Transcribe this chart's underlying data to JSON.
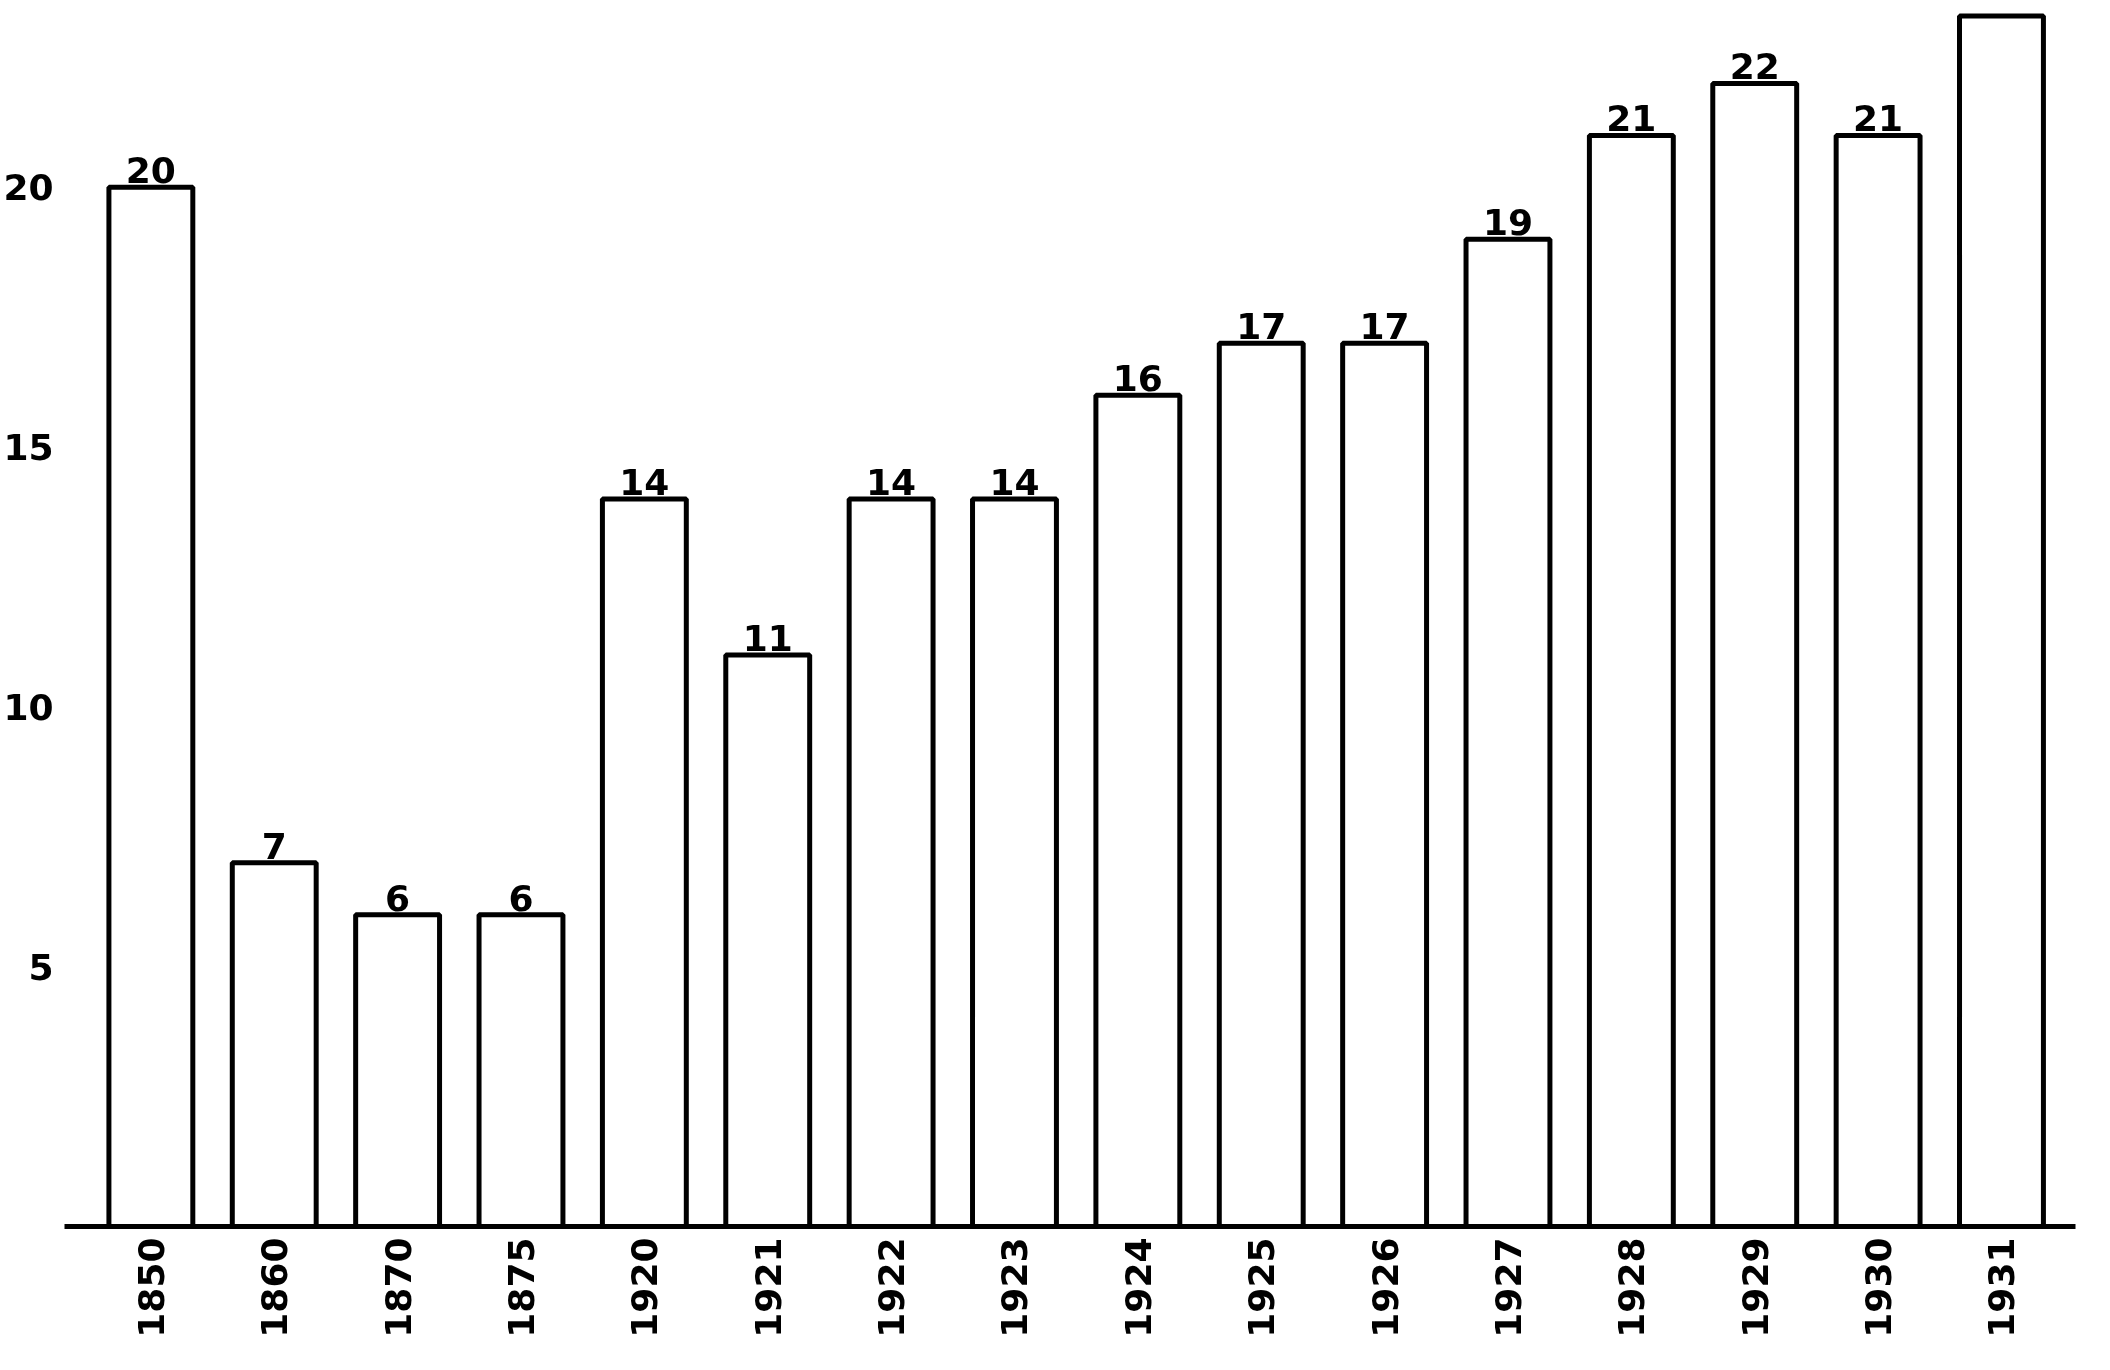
{
  "chart_data": {
    "type": "bar",
    "categories": [
      "1850",
      "1860",
      "1870",
      "1875",
      "1920",
      "1921",
      "1922",
      "1923",
      "1924",
      "1925",
      "1926",
      "1927",
      "1928",
      "1929",
      "1930",
      "1931"
    ],
    "values": [
      20,
      7,
      6,
      6,
      14,
      11,
      14,
      14,
      16,
      17,
      17,
      19,
      21,
      22,
      21,
      23.3
    ],
    "value_labels": [
      "20",
      "7",
      "6",
      "6",
      "14",
      "11",
      "14",
      "14",
      "16",
      "17",
      "17",
      "19",
      "21",
      "22",
      "21",
      null
    ],
    "color": "#ffffff",
    "ylim": [
      0,
      23.5
    ],
    "yticks": [
      5,
      10,
      15,
      20
    ],
    "grid": false
  }
}
